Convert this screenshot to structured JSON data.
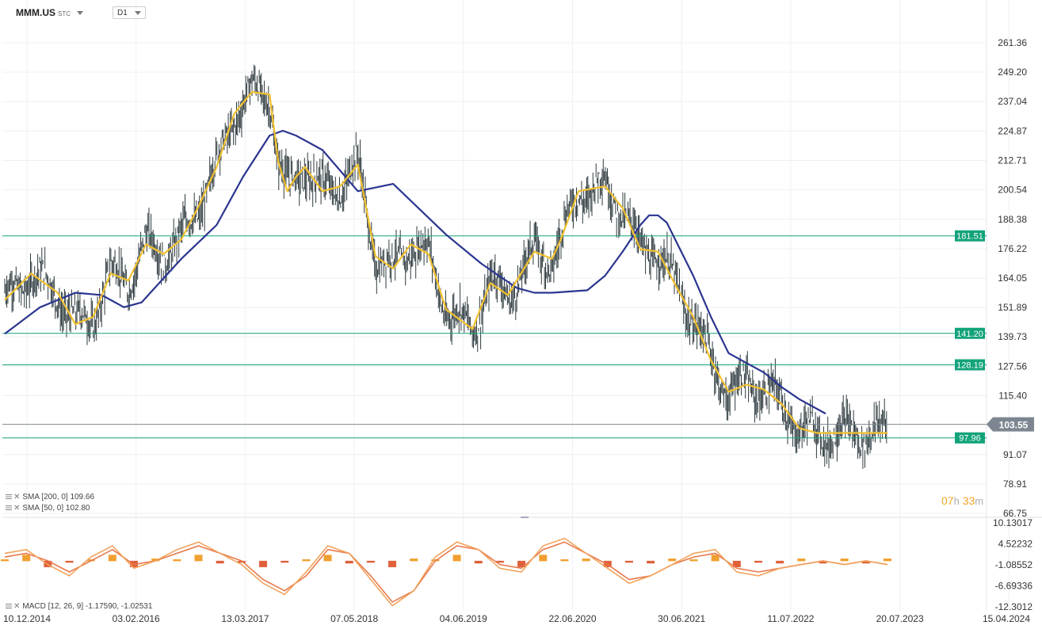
{
  "header": {
    "symbol": "MMM.US",
    "symbol_suffix": "STC",
    "timeframe": "D1"
  },
  "legend": [
    {
      "label": "SMA",
      "params": "[200, 0]",
      "value": "109.66"
    },
    {
      "label": "SMA",
      "params": "[50, 0]",
      "value": "102.80"
    },
    {
      "label": "MACD",
      "params": "[12, 26, 9]",
      "value": "-1.17590, -1.02531"
    }
  ],
  "timer": {
    "hours": "07",
    "h_unit": "h",
    "minutes": "33",
    "m_unit": "m"
  },
  "colors": {
    "candles": "#2e3a3f",
    "sma50": "#f2c12e",
    "sma200": "#2a3590",
    "levels": "#13a37a",
    "current": "#7d8690",
    "macd_line": "#f2a35c",
    "macd_signal": "#e8794b",
    "macd_hist_pos": "#f0a030",
    "macd_hist_neg": "#e0603a"
  },
  "chart_data": [
    {
      "type": "line",
      "x_labels": [
        "10.12.2014",
        "03.02.2016",
        "13.03.2017",
        "07.05.2018",
        "04.06.2019",
        "22.06.2020",
        "30.06.2021",
        "11.07.2022",
        "20.07.2023",
        "15.04.2024"
      ],
      "y_ticks": [
        "261.36",
        "249.20",
        "237.04",
        "224.87",
        "212.71",
        "200.54",
        "188.38",
        "176.22",
        "164.05",
        "151.89",
        "139.73",
        "127.56",
        "115.40",
        "103.55",
        "91.07",
        "78.91",
        "66.75"
      ],
      "ylim": [
        66.75,
        261.36
      ],
      "grid": true,
      "horizontal_levels": [
        {
          "label": "181.51",
          "value": 181.51
        },
        {
          "label": "141.20",
          "value": 141.2
        },
        {
          "label": "128.19",
          "value": 128.19
        },
        {
          "label": "97.96",
          "value": 97.96
        }
      ],
      "current_price": {
        "label": "103.55",
        "value": 103.55
      },
      "series": [
        {
          "name": "SMA [200, 0]",
          "x": [
            0,
            0.04,
            0.08,
            0.11,
            0.135,
            0.155,
            0.175,
            0.2,
            0.24,
            0.27,
            0.3,
            0.315,
            0.33,
            0.36,
            0.4,
            0.44,
            0.5,
            0.54,
            0.58,
            0.6,
            0.61,
            0.62,
            0.66,
            0.68,
            0.7,
            0.72,
            0.73,
            0.74,
            0.75,
            0.78,
            0.8,
            0.82,
            0.86,
            0.88,
            0.9,
            0.93
          ],
          "y": [
            141,
            152,
            158,
            157,
            152,
            154,
            162,
            172,
            186,
            206,
            223,
            225,
            223,
            217,
            200,
            203,
            182,
            170,
            160,
            158,
            158,
            158,
            159,
            165,
            175,
            186,
            190,
            190,
            187,
            165,
            148,
            133,
            125,
            119,
            114,
            108
          ]
        },
        {
          "name": "SMA [50, 0]",
          "x": [
            0,
            0.03,
            0.06,
            0.08,
            0.1,
            0.12,
            0.14,
            0.16,
            0.18,
            0.2,
            0.22,
            0.24,
            0.26,
            0.28,
            0.3,
            0.31,
            0.32,
            0.33,
            0.34,
            0.36,
            0.38,
            0.4,
            0.42,
            0.44,
            0.46,
            0.48,
            0.5,
            0.53,
            0.55,
            0.57,
            0.6,
            0.62,
            0.63,
            0.65,
            0.68,
            0.7,
            0.72,
            0.74,
            0.76,
            0.78,
            0.8,
            0.82,
            0.84,
            0.86,
            0.88,
            0.9,
            0.92,
            0.94,
            0.96,
            0.98,
            1.0
          ],
          "y": [
            155,
            166,
            158,
            145,
            148,
            166,
            163,
            178,
            174,
            180,
            194,
            210,
            232,
            241,
            240,
            212,
            200,
            206,
            210,
            200,
            202,
            211,
            173,
            168,
            178,
            174,
            151,
            143,
            162,
            157,
            175,
            172,
            180,
            200,
            202,
            193,
            176,
            175,
            161,
            148,
            130,
            117,
            120,
            118,
            112,
            102,
            100,
            100,
            100,
            100,
            100
          ]
        }
      ]
    },
    {
      "type": "line",
      "title": "MACD [12, 26, 9]",
      "y_ticks": [
        "10.13017",
        "4.52232",
        "-1.08552",
        "-6.69336",
        "-12.3012"
      ],
      "ylim": [
        -12.3012,
        10.13017
      ],
      "series": [
        {
          "name": "MACD",
          "values": [
            2,
            3,
            -1,
            -4,
            1,
            4,
            -2,
            0,
            3,
            5,
            2,
            -1,
            -6,
            -9,
            -3,
            4,
            2,
            -5,
            -12,
            -8,
            1,
            5,
            3,
            -2,
            -3,
            4,
            6,
            2,
            -2,
            -6,
            -4,
            -1,
            2,
            3,
            -3,
            -4,
            -2,
            -1,
            0,
            -1,
            0,
            -1
          ]
        },
        {
          "name": "Signal",
          "values": [
            1,
            2,
            0,
            -3,
            0,
            3,
            -1,
            0,
            2,
            4,
            2,
            0,
            -5,
            -8,
            -4,
            3,
            2,
            -4,
            -11,
            -8,
            0,
            4,
            3,
            -1,
            -2,
            3,
            5,
            2,
            -1,
            -5,
            -4,
            -1,
            1,
            2,
            -2,
            -3,
            -2,
            -1,
            0,
            -1,
            0,
            -1
          ]
        }
      ]
    }
  ]
}
